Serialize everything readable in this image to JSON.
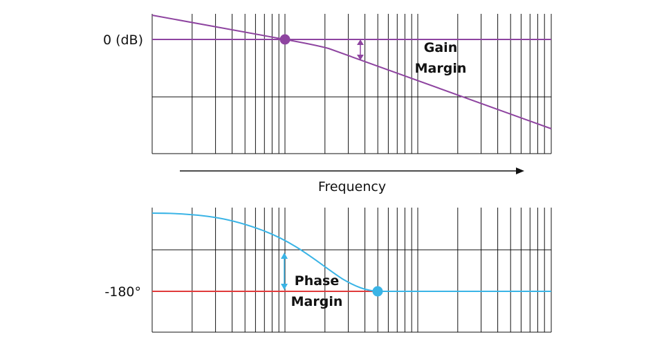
{
  "gain_plot": {
    "zero_label": "0 (dB)",
    "margin_label_line1": "Gain",
    "margin_label_line2": "Margin"
  },
  "frequency_axis": {
    "label": "Frequency"
  },
  "phase_plot": {
    "ref_label": "-180°",
    "margin_label_line1": "Phase",
    "margin_label_line2": "Margin"
  },
  "colors": {
    "gain_curve": "#8e44a0",
    "phase_curve": "#3ab4e6",
    "reference_line": "#e03a3a",
    "grid": "#111111"
  }
}
